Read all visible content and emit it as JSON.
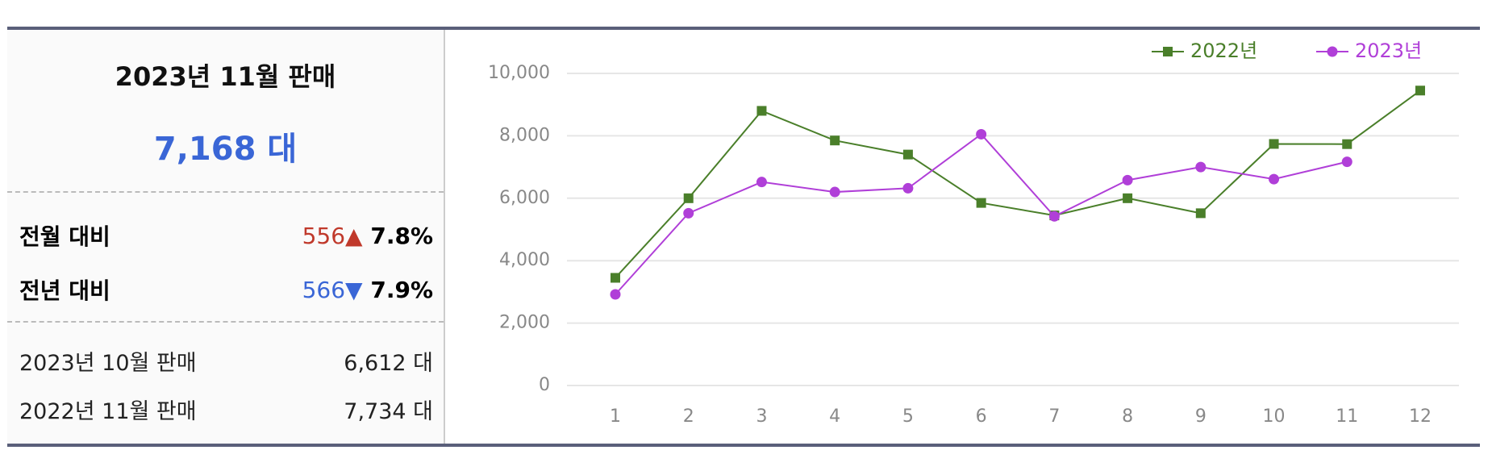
{
  "summary": {
    "title": "2023년 11월 판매",
    "total": "7,168 대",
    "comparisons": [
      {
        "label": "전월 대비",
        "change": "556",
        "arrow": "▲",
        "rate": "7.8%"
      },
      {
        "label": "전년 대비",
        "change": "566",
        "arrow": "▼",
        "rate": "7.9%"
      }
    ],
    "details": [
      {
        "label": "2023년 10월 판매",
        "value": "6,612 대"
      },
      {
        "label": "2022년 11월 판매",
        "value": "7,734 대"
      }
    ]
  },
  "chart_data": {
    "type": "line",
    "categories": [
      "1",
      "2",
      "3",
      "4",
      "5",
      "6",
      "7",
      "8",
      "9",
      "10",
      "11",
      "12"
    ],
    "series": [
      {
        "name": "2022년",
        "color": "#4a7f2a",
        "marker": "square",
        "values": [
          3450,
          6000,
          8800,
          7850,
          7400,
          5850,
          5450,
          6000,
          5520,
          7740,
          7734,
          9450
        ]
      },
      {
        "name": "2023년",
        "color": "#b03fd8",
        "marker": "circle",
        "values": [
          2920,
          5520,
          6520,
          6200,
          6320,
          8050,
          5420,
          6580,
          7000,
          6612,
          7168,
          null
        ]
      }
    ],
    "ylim": [
      0,
      10000
    ],
    "yticks": [
      0,
      {
        "value": 2000,
        "label": "2,000"
      },
      {
        "value": 4000,
        "label": "4,000"
      },
      {
        "value": 6000,
        "label": "6,000"
      },
      {
        "value": 8000,
        "label": "8,000"
      },
      {
        "value": 10000,
        "label": "10,000"
      }
    ],
    "grid": true,
    "legend": "top-right"
  }
}
